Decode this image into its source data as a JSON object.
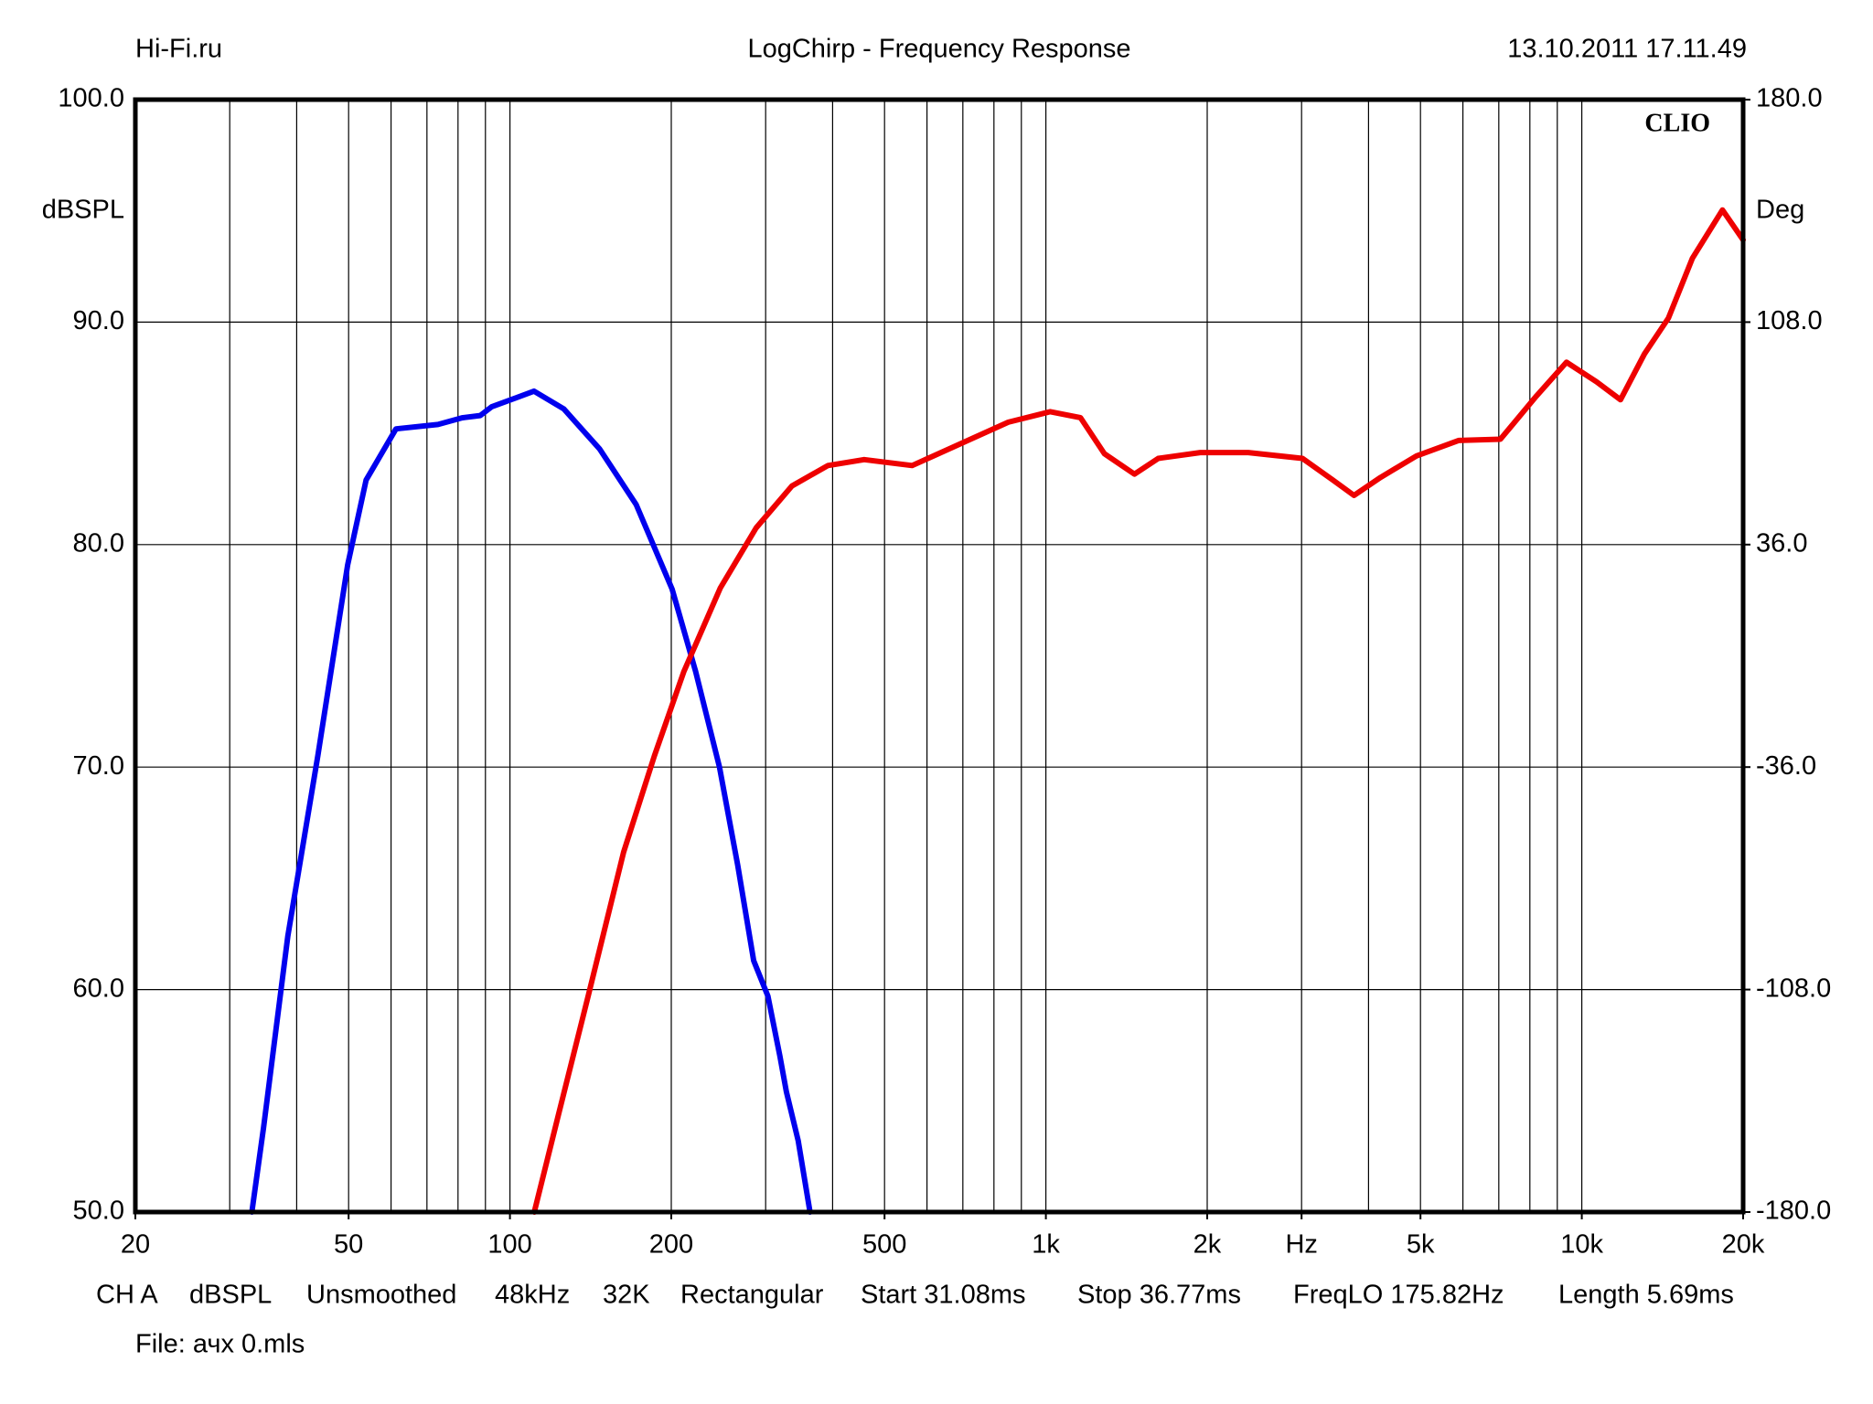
{
  "chart_data": {
    "type": "line",
    "header_left": "Hi-Fi.ru",
    "title": "LogChirp - Frequency Response",
    "header_right": "13.10.2011 17.11.49",
    "brand": "CLIO",
    "ylabel": "dBSPL",
    "y2label": "Deg",
    "log_x": true,
    "grid": true,
    "xlim": [
      20,
      20000
    ],
    "xticks": [
      20,
      50,
      100,
      200,
      500,
      {
        "value": 1000,
        "label": "1k"
      },
      {
        "value": 2000,
        "label": "2k"
      },
      {
        "value": 3000,
        "label": "Hz"
      },
      {
        "value": 5000,
        "label": "5k"
      },
      {
        "value": 10000,
        "label": "10k"
      },
      {
        "value": 20000,
        "label": "20k"
      }
    ],
    "xgrid": [
      30,
      40,
      50,
      60,
      70,
      80,
      90,
      100,
      200,
      300,
      400,
      500,
      600,
      700,
      800,
      900,
      1000,
      2000,
      3000,
      4000,
      5000,
      6000,
      7000,
      8000,
      9000,
      10000
    ],
    "ylim": [
      50,
      100
    ],
    "yticks": [
      {
        "value": 50,
        "label": "50.0"
      },
      {
        "value": 60,
        "label": "60.0"
      },
      {
        "value": 70,
        "label": "70.0"
      },
      {
        "value": 80,
        "label": "80.0"
      },
      {
        "value": 90,
        "label": "90.0"
      },
      {
        "value": 100,
        "label": "100.0"
      }
    ],
    "y2lim": [
      -180,
      180
    ],
    "y2ticks": [
      {
        "value": -180,
        "label": "-180.0"
      },
      {
        "value": -108,
        "label": "-108.0"
      },
      {
        "value": -36,
        "label": "-36.0"
      },
      {
        "value": 36,
        "label": "36.0"
      },
      {
        "value": 108,
        "label": "108.0"
      },
      {
        "value": 180,
        "label": "180.0"
      }
    ],
    "series": [
      {
        "color": "#0000ee",
        "axis": "y",
        "x": [
          33,
          34.7,
          38.5,
          43.8,
          49.8,
          53.9,
          61.3,
          73.4,
          81.4,
          88,
          92.5,
          102.7,
          110.9,
          126,
          147,
          172,
          200.7,
          222,
          246,
          266,
          285,
          303,
          319,
          328,
          345,
          363
        ],
        "values": [
          50,
          53.8,
          62.4,
          70.5,
          79.1,
          82.9,
          85.2,
          85.4,
          85.7,
          85.8,
          86.2,
          86.6,
          86.9,
          86.1,
          84.3,
          81.8,
          78,
          74.3,
          70,
          65.6,
          61.3,
          59.7,
          57,
          55.4,
          53.2,
          50
        ]
      },
      {
        "color": "#ee0000",
        "axis": "y2",
        "x": [
          111,
          123,
          140,
          163,
          186,
          211,
          247,
          288,
          336,
          392,
          458,
          563,
          692,
          851,
          1019,
          1160,
          1286,
          1463,
          1621,
          1941,
          2386,
          3011,
          3425,
          3757,
          4210,
          4915,
          5887,
          7050,
          8230,
          9365,
          10650,
          11810,
          13090,
          14510,
          16090,
          18300,
          20000
        ],
        "values": [
          -180,
          -148.9,
          -110,
          -63.5,
          -32.4,
          -5.2,
          22,
          41.4,
          55,
          61.6,
          63.5,
          61.6,
          68.6,
          75.6,
          79,
          77.1,
          65.4,
          58.8,
          63.9,
          65.8,
          65.8,
          63.9,
          57,
          51.9,
          57.7,
          64.7,
          69.7,
          70.1,
          84.1,
          95,
          88.7,
          82.9,
          97.7,
          109.3,
          128.7,
          144.3,
          134.6
        ]
      }
    ],
    "settings": [
      "CH A",
      "dBSPL",
      "Unsmoothed",
      "48kHz",
      "32K",
      "Rectangular",
      "Start 31.08ms",
      "Stop 36.77ms",
      "FreqLO 175.82Hz",
      "Length 5.69ms"
    ],
    "file": "File: ачх 0.mls"
  }
}
